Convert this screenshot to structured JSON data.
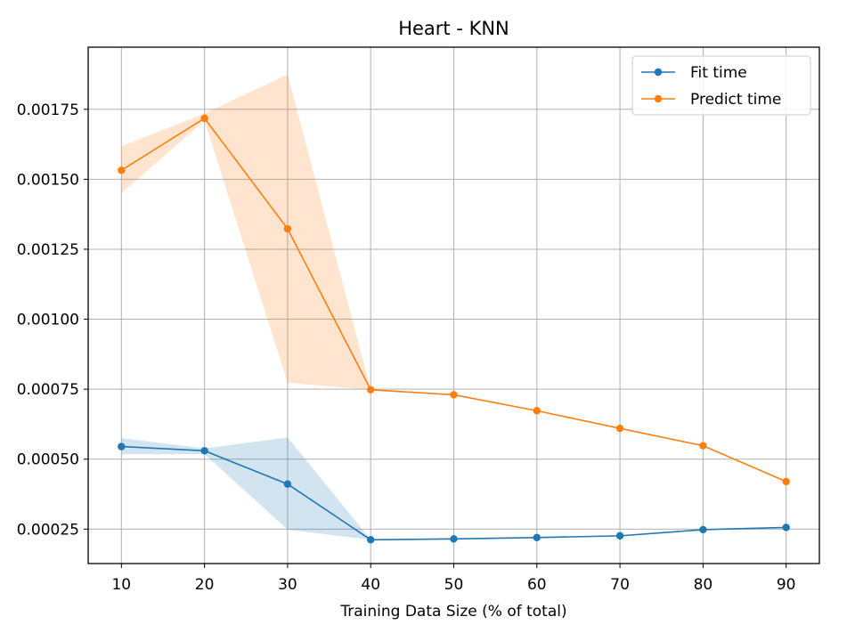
{
  "chart_data": {
    "type": "line",
    "title": "Heart - KNN",
    "xlabel": "Training Data Size (% of total)",
    "ylabel": "",
    "x": [
      10,
      20,
      30,
      40,
      50,
      60,
      70,
      80,
      90
    ],
    "xlim": [
      6,
      94
    ],
    "ylim": [
      0.000127,
      0.001972
    ],
    "xticks": [
      10,
      20,
      30,
      40,
      50,
      60,
      70,
      80,
      90
    ],
    "xtick_labels": [
      "10",
      "20",
      "30",
      "40",
      "50",
      "60",
      "70",
      "80",
      "90"
    ],
    "yticks": [
      0.00025,
      0.0005,
      0.00075,
      0.001,
      0.00125,
      0.0015,
      0.00175
    ],
    "ytick_labels": [
      "0.00025",
      "0.00050",
      "0.00075",
      "0.00100",
      "0.00125",
      "0.00150",
      "0.00175"
    ],
    "grid": true,
    "legend_position": "top-right",
    "series": [
      {
        "name": "Fit time",
        "color": "#1f77b4",
        "band_color": "#1f77b4",
        "values": [
          0.000545,
          0.00053,
          0.000411,
          0.000212,
          0.000215,
          0.00022,
          0.000226,
          0.000248,
          0.000256
        ],
        "lower": [
          0.000518,
          0.000518,
          0.000248,
          0.000212,
          0.000215,
          0.00022,
          0.000226,
          0.000248,
          0.000256
        ],
        "upper": [
          0.000575,
          0.000538,
          0.000578,
          0.000212,
          0.000215,
          0.00022,
          0.000226,
          0.000248,
          0.000256
        ]
      },
      {
        "name": "Predict time",
        "color": "#ff7f0e",
        "band_color": "#ff7f0e",
        "values": [
          0.001532,
          0.001718,
          0.001323,
          0.000748,
          0.00073,
          0.000673,
          0.00061,
          0.000548,
          0.00042
        ],
        "lower": [
          0.00145,
          0.00171,
          0.000773,
          0.000748,
          0.00073,
          0.000673,
          0.00061,
          0.000548,
          0.00042
        ],
        "upper": [
          0.001618,
          0.001735,
          0.001875,
          0.000748,
          0.00073,
          0.000673,
          0.00061,
          0.000548,
          0.00042
        ]
      }
    ]
  }
}
